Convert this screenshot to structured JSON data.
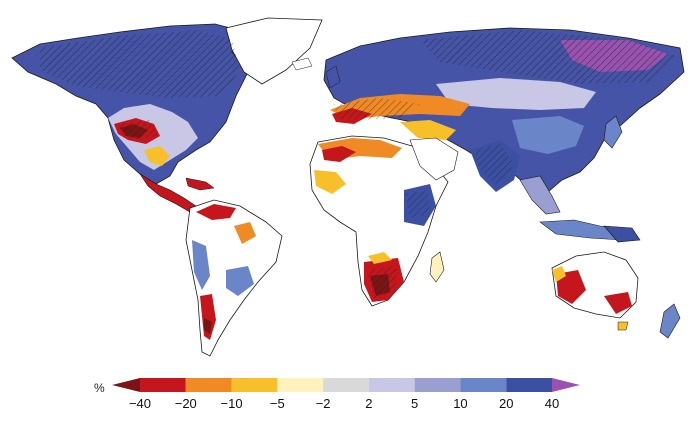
{
  "legend": {
    "unit": "%",
    "tick_labels": [
      "−40",
      "−20",
      "−10",
      "−5",
      "−2",
      "2",
      "5",
      "10",
      "20",
      "40"
    ],
    "bins": [
      {
        "color": "#7b1414"
      },
      {
        "color": "#c4161c"
      },
      {
        "color": "#f08a24"
      },
      {
        "color": "#f7bf2a"
      },
      {
        "color": "#fff2bd"
      },
      {
        "color": "#d9d9d9"
      },
      {
        "color": "#c8c8e6"
      },
      {
        "color": "#9a9fd2"
      },
      {
        "color": "#6a86c8"
      },
      {
        "color": "#3b4fa3"
      },
      {
        "color": "#9a52b0"
      }
    ]
  },
  "map": {
    "ocean_color": "#ffffff",
    "land_outline_color": "#1a1a1a",
    "hatching_meaning_shown": false
  }
}
